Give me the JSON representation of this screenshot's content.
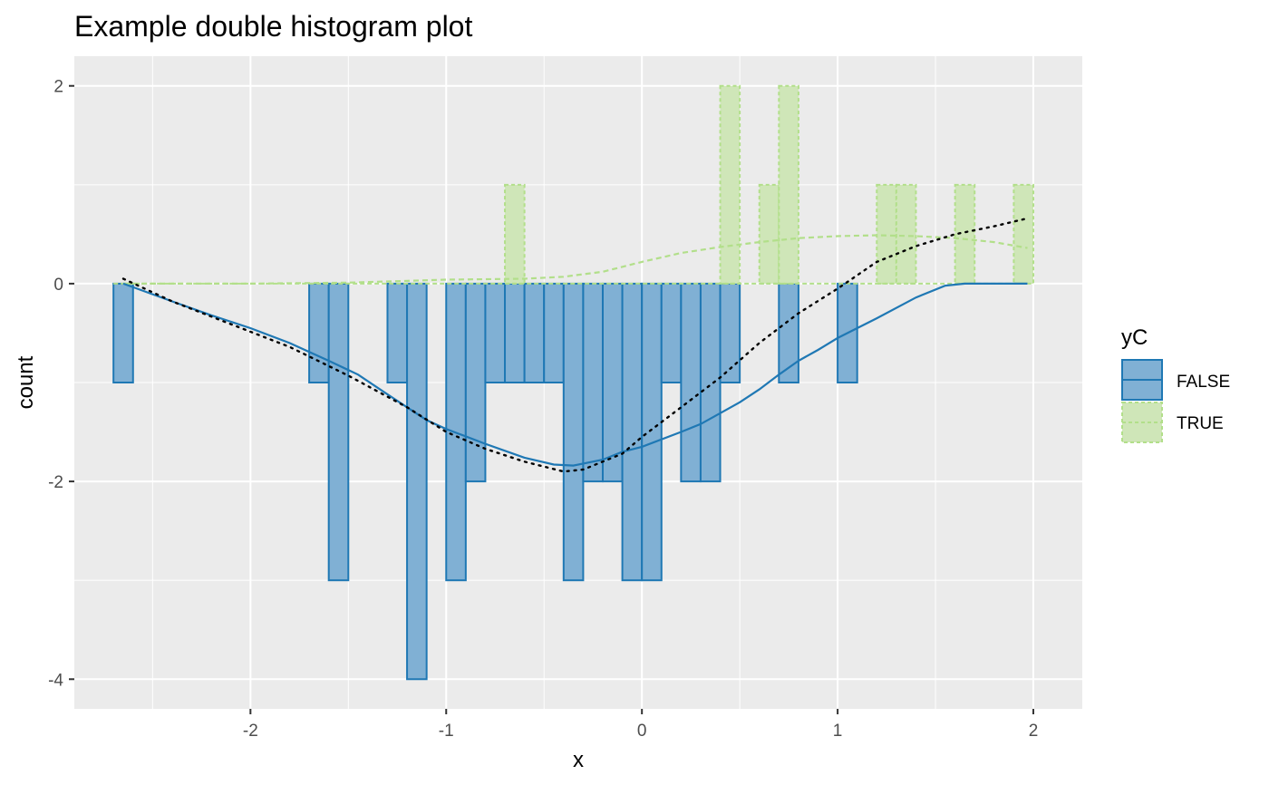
{
  "chart_data": {
    "type": "bar",
    "title": "Example double histogram plot",
    "xlabel": "x",
    "ylabel": "count",
    "xlim": [
      -2.9,
      2.25
    ],
    "ylim": [
      -4.3,
      2.3
    ],
    "x_ticks": [
      -2,
      -1,
      0,
      1,
      2
    ],
    "y_ticks": [
      -4,
      -2,
      0,
      2
    ],
    "x_tick_labels": [
      "-2",
      "-1",
      "0",
      "1",
      "2"
    ],
    "y_tick_labels": [
      "-4",
      "-2",
      "0",
      "2"
    ],
    "bin_width": 0.1,
    "grid": true,
    "legend": {
      "title": "yC",
      "position": "right",
      "entries": [
        {
          "label": "FALSE",
          "key": "false"
        },
        {
          "label": "TRUE",
          "key": "true"
        }
      ]
    },
    "colors": {
      "panel": "#ebebeb",
      "grid": "#ffffff",
      "false_fill": "#80b0d4",
      "false_stroke": "#1f78b4",
      "true_fill": "#cfe6b8",
      "true_stroke": "#b2df8a",
      "dotted": "#000000"
    },
    "series": [
      {
        "name": "FALSE",
        "key": "false",
        "bars": [
          {
            "x": -2.65,
            "y": -1
          },
          {
            "x": -1.65,
            "y": -1
          },
          {
            "x": -1.55,
            "y": -3
          },
          {
            "x": -1.25,
            "y": -1
          },
          {
            "x": -1.15,
            "y": -4
          },
          {
            "x": -0.95,
            "y": -3
          },
          {
            "x": -0.85,
            "y": -2
          },
          {
            "x": -0.75,
            "y": -1
          },
          {
            "x": -0.65,
            "y": -1
          },
          {
            "x": -0.55,
            "y": -1
          },
          {
            "x": -0.45,
            "y": -1
          },
          {
            "x": -0.35,
            "y": -3
          },
          {
            "x": -0.25,
            "y": -2
          },
          {
            "x": -0.15,
            "y": -2
          },
          {
            "x": -0.05,
            "y": -3
          },
          {
            "x": 0.05,
            "y": -3
          },
          {
            "x": 0.15,
            "y": -1
          },
          {
            "x": 0.25,
            "y": -2
          },
          {
            "x": 0.35,
            "y": -2
          },
          {
            "x": 0.45,
            "y": -1
          },
          {
            "x": 0.75,
            "y": -1
          },
          {
            "x": 1.05,
            "y": -1
          }
        ],
        "density_curve": [
          [
            -2.65,
            0
          ],
          [
            -2.4,
            -0.18
          ],
          [
            -2.2,
            -0.32
          ],
          [
            -2.0,
            -0.45
          ],
          [
            -1.8,
            -0.6
          ],
          [
            -1.6,
            -0.78
          ],
          [
            -1.45,
            -0.92
          ],
          [
            -1.3,
            -1.12
          ],
          [
            -1.2,
            -1.25
          ],
          [
            -1.1,
            -1.38
          ],
          [
            -1.0,
            -1.47
          ],
          [
            -0.8,
            -1.62
          ],
          [
            -0.6,
            -1.76
          ],
          [
            -0.45,
            -1.83
          ],
          [
            -0.35,
            -1.84
          ],
          [
            -0.2,
            -1.78
          ],
          [
            -0.1,
            -1.7
          ],
          [
            0.0,
            -1.65
          ],
          [
            0.2,
            -1.5
          ],
          [
            0.3,
            -1.42
          ],
          [
            0.5,
            -1.2
          ],
          [
            0.6,
            -1.07
          ],
          [
            0.7,
            -0.92
          ],
          [
            0.8,
            -0.78
          ],
          [
            0.9,
            -0.67
          ],
          [
            1.0,
            -0.55
          ],
          [
            1.2,
            -0.35
          ],
          [
            1.4,
            -0.14
          ],
          [
            1.55,
            -0.02
          ],
          [
            1.65,
            0
          ],
          [
            1.97,
            0
          ]
        ]
      },
      {
        "name": "TRUE",
        "key": "true",
        "bars": [
          {
            "x": -0.65,
            "y": 1
          },
          {
            "x": 0.45,
            "y": 2
          },
          {
            "x": 0.65,
            "y": 1
          },
          {
            "x": 0.75,
            "y": 2
          },
          {
            "x": 1.25,
            "y": 1
          },
          {
            "x": 1.35,
            "y": 1
          },
          {
            "x": 1.65,
            "y": 1
          },
          {
            "x": 1.95,
            "y": 1
          }
        ],
        "density_curve": [
          [
            -2.65,
            0
          ],
          [
            -2.0,
            0.0
          ],
          [
            -1.5,
            0.01
          ],
          [
            -1.0,
            0.04
          ],
          [
            -0.6,
            0.05
          ],
          [
            -0.4,
            0.07
          ],
          [
            -0.2,
            0.12
          ],
          [
            0.0,
            0.22
          ],
          [
            0.2,
            0.31
          ],
          [
            0.4,
            0.37
          ],
          [
            0.6,
            0.42
          ],
          [
            0.8,
            0.46
          ],
          [
            1.0,
            0.48
          ],
          [
            1.2,
            0.49
          ],
          [
            1.4,
            0.48
          ],
          [
            1.6,
            0.46
          ],
          [
            1.8,
            0.42
          ],
          [
            1.97,
            0.36
          ]
        ]
      }
    ],
    "difference_curve": [
      [
        -2.65,
        0.05
      ],
      [
        -2.4,
        -0.18
      ],
      [
        -2.1,
        -0.41
      ],
      [
        -1.8,
        -0.64
      ],
      [
        -1.5,
        -0.93
      ],
      [
        -1.2,
        -1.25
      ],
      [
        -1.0,
        -1.5
      ],
      [
        -0.8,
        -1.67
      ],
      [
        -0.6,
        -1.8
      ],
      [
        -0.4,
        -1.9
      ],
      [
        -0.3,
        -1.88
      ],
      [
        -0.1,
        -1.72
      ],
      [
        0.0,
        -1.55
      ],
      [
        0.2,
        -1.25
      ],
      [
        0.4,
        -0.95
      ],
      [
        0.6,
        -0.6
      ],
      [
        0.8,
        -0.3
      ],
      [
        1.0,
        -0.05
      ],
      [
        1.2,
        0.22
      ],
      [
        1.4,
        0.38
      ],
      [
        1.6,
        0.5
      ],
      [
        1.8,
        0.58
      ],
      [
        1.97,
        0.66
      ]
    ]
  }
}
